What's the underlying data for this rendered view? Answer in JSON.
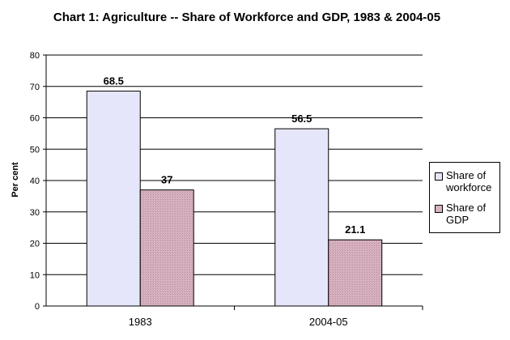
{
  "chart_data": {
    "type": "bar",
    "title": "Chart 1: Agriculture -- Share of Workforce and GDP, 1983 & 2004-05",
    "xlabel": "",
    "ylabel": "Per cent",
    "ylim": [
      0,
      80
    ],
    "yticks": [
      0,
      10,
      20,
      30,
      40,
      50,
      60,
      70,
      80
    ],
    "categories": [
      "1983",
      "2004-05"
    ],
    "series": [
      {
        "name": "Share of workforce",
        "values": [
          68.5,
          56.5
        ],
        "color": "#e6e6fa"
      },
      {
        "name": "Share of GDP",
        "values": [
          37,
          21.1
        ],
        "color": "#d8b2c0"
      }
    ],
    "data_labels": [
      [
        "68.5",
        "56.5"
      ],
      [
        "37",
        "21.1"
      ]
    ],
    "grid": true,
    "legend_position": "right"
  }
}
